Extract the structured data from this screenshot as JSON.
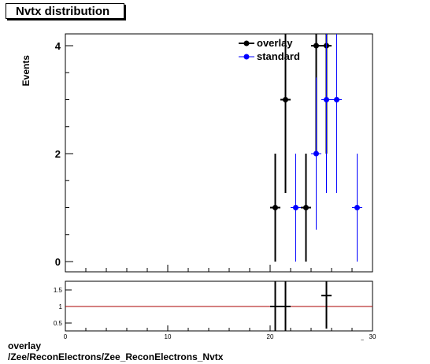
{
  "title": "Nvtx distribution",
  "footer": {
    "line1": "overlay",
    "line2": "/Zee/ReconElectrons/Zee_ReconElectrons_Nvtx"
  },
  "colors": {
    "overlay": "#000000",
    "standard": "#0000ff",
    "ratio_line": "#aa0000"
  },
  "chart_data": [
    {
      "type": "scatter",
      "title": "Nvtx distribution",
      "xlabel": "",
      "ylabel": "Events",
      "xlim": [
        0,
        30
      ],
      "ylim": [
        0,
        4.2
      ],
      "yticks": [
        0,
        2,
        4
      ],
      "legend_position": "top-center",
      "series": [
        {
          "name": "overlay",
          "points": [
            {
              "x": 20.5,
              "y": 1,
              "err": 1
            },
            {
              "x": 21.5,
              "y": 3,
              "err": 1.73
            },
            {
              "x": 23.5,
              "y": 1,
              "err": 1
            },
            {
              "x": 24.5,
              "y": 4,
              "err": 2
            },
            {
              "x": 25.5,
              "y": 4,
              "err": 2
            }
          ]
        },
        {
          "name": "standard",
          "points": [
            {
              "x": 22.5,
              "y": 1,
              "err": 1
            },
            {
              "x": 24.5,
              "y": 2,
              "err": 1.41
            },
            {
              "x": 25.5,
              "y": 3,
              "err": 1.73
            },
            {
              "x": 26.5,
              "y": 3,
              "err": 1.73
            },
            {
              "x": 28.5,
              "y": 1,
              "err": 1
            }
          ]
        }
      ]
    },
    {
      "type": "scatter",
      "xlabel": "",
      "ylabel": "",
      "xlim": [
        0,
        30
      ],
      "ylim": [
        0.3,
        1.75
      ],
      "xticks": [
        0,
        10,
        20,
        30
      ],
      "yticks": [
        0.5,
        1,
        1.5
      ],
      "reference_line": 1,
      "points": [
        {
          "x": 20.5,
          "y": 1.0,
          "err": 1.4
        },
        {
          "x": 21.5,
          "y": 1.0,
          "err": 1.2
        },
        {
          "x": 25.5,
          "y": 1.33,
          "err": 1.0
        }
      ]
    }
  ]
}
